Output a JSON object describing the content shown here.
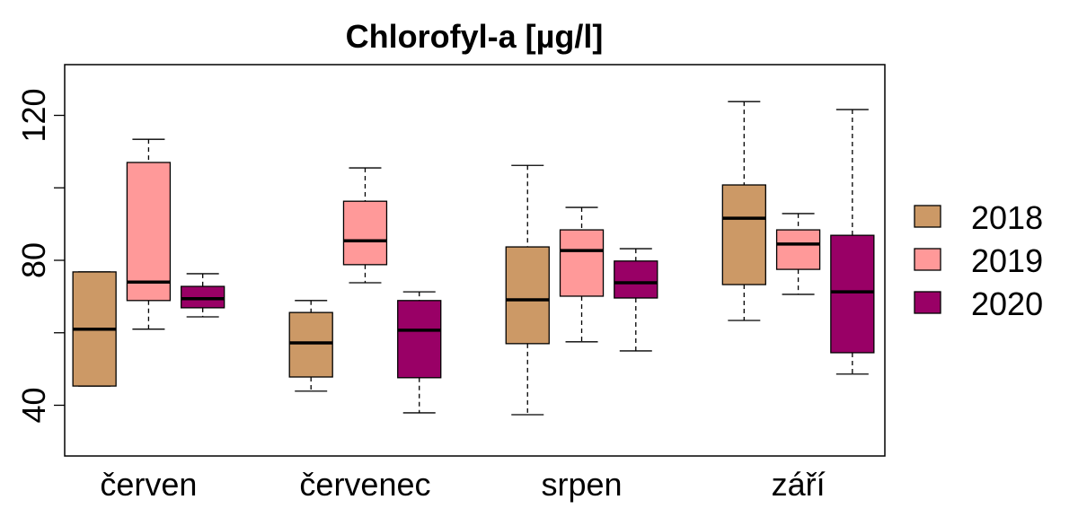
{
  "chart_data": {
    "type": "boxplot",
    "title": "Chlorofyl-a [µg/l]",
    "xlabel": "",
    "ylabel": "",
    "ylim": [
      26,
      134
    ],
    "yticks": [
      40,
      80,
      120
    ],
    "ytick_labels": [
      "40",
      "80",
      "120"
    ],
    "grid": false,
    "legend_position": "right",
    "categories": [
      "červen",
      "červenec",
      "srpen",
      "září"
    ],
    "series": [
      {
        "name": "2018",
        "color": "#CC9966",
        "boxes": [
          {
            "min": 45.3,
            "q1": 45.3,
            "median": 61.0,
            "q3": 76.8,
            "max": 76.8
          },
          {
            "min": 43.9,
            "q1": 47.8,
            "median": 57.2,
            "q3": 65.6,
            "max": 68.9
          },
          {
            "min": 37.4,
            "q1": 57.0,
            "median": 69.1,
            "q3": 83.7,
            "max": 106.2
          },
          {
            "min": 63.4,
            "q1": 73.3,
            "median": 91.6,
            "q3": 100.8,
            "max": 123.8
          }
        ]
      },
      {
        "name": "2019",
        "color": "#FF9999",
        "boxes": [
          {
            "min": 61.0,
            "q1": 68.9,
            "median": 74.0,
            "q3": 107.0,
            "max": 113.4
          },
          {
            "min": 73.8,
            "q1": 78.8,
            "median": 85.4,
            "q3": 96.3,
            "max": 105.5
          },
          {
            "min": 57.5,
            "q1": 70.1,
            "median": 82.7,
            "q3": 88.4,
            "max": 94.6
          },
          {
            "min": 70.6,
            "q1": 77.5,
            "median": 84.5,
            "q3": 88.4,
            "max": 92.9
          }
        ]
      },
      {
        "name": "2020",
        "color": "#990066",
        "boxes": [
          {
            "min": 64.4,
            "q1": 66.9,
            "median": 69.4,
            "q3": 72.8,
            "max": 76.3
          },
          {
            "min": 37.9,
            "q1": 47.6,
            "median": 60.7,
            "q3": 68.9,
            "max": 71.3
          },
          {
            "min": 55.0,
            "q1": 69.6,
            "median": 73.8,
            "q3": 79.8,
            "max": 83.2
          },
          {
            "min": 48.6,
            "q1": 54.5,
            "median": 71.3,
            "q3": 86.9,
            "max": 121.6
          }
        ]
      }
    ]
  }
}
